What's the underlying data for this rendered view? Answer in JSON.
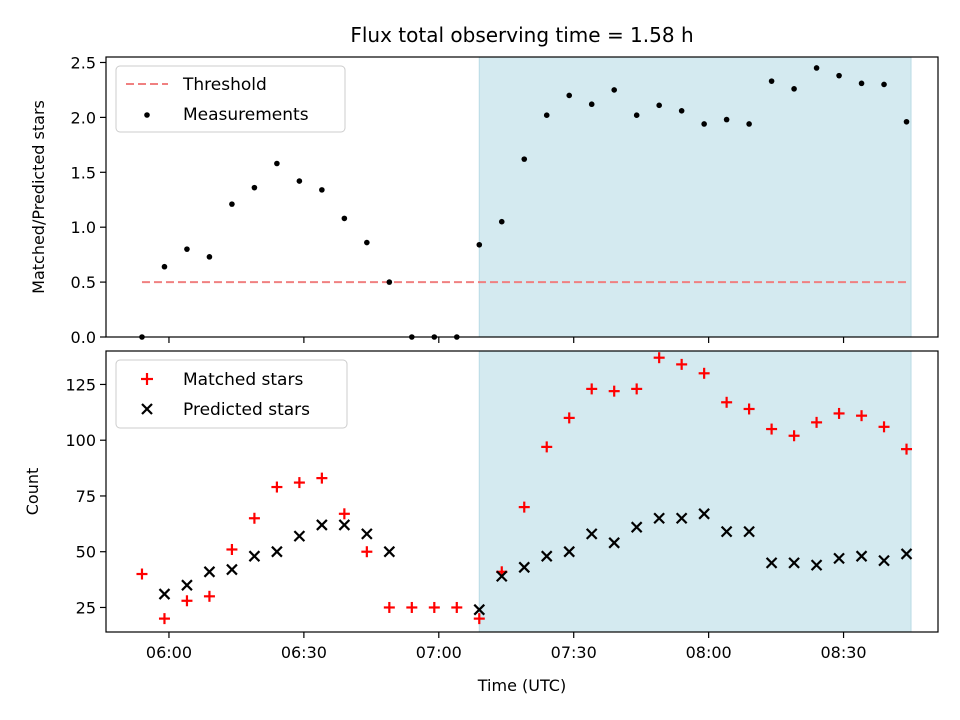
{
  "chart_data": {
    "title": "Flux total observing time = 1.58 h",
    "x_label": "Time (UTC)",
    "x_ticks": [
      "06:00",
      "06:30",
      "07:00",
      "07:30",
      "08:00",
      "08:30"
    ],
    "x_range": [
      "05:46",
      "08:51"
    ],
    "highlight_span": {
      "start": "07:09",
      "end": "08:45",
      "color": "#d4eaf0"
    },
    "times": [
      "05:54",
      "05:59",
      "06:04",
      "06:09",
      "06:14",
      "06:19",
      "06:24",
      "06:29",
      "06:34",
      "06:39",
      "06:44",
      "06:49",
      "06:54",
      "06:59",
      "07:04",
      "07:09",
      "07:14",
      "07:19",
      "07:24",
      "07:29",
      "07:34",
      "07:39",
      "07:44",
      "07:49",
      "07:54",
      "07:59",
      "08:04",
      "08:09",
      "08:14",
      "08:19",
      "08:24",
      "08:29",
      "08:34",
      "08:39",
      "08:44"
    ],
    "panels": [
      {
        "type": "scatter+line",
        "ylabel": "Matched/Predicted stars",
        "ylim": [
          0,
          2.55
        ],
        "y_ticks": [
          "0.0",
          "0.5",
          "1.0",
          "1.5",
          "2.0",
          "2.5"
        ],
        "legend_position": "upper-left",
        "threshold": {
          "name": "Threshold",
          "value": 0.5,
          "color": "#f08080",
          "style": "dashed"
        },
        "series": [
          {
            "name": "Measurements",
            "marker": "dot",
            "color": "#000000",
            "values": [
              0.0,
              0.64,
              0.8,
              0.73,
              1.21,
              1.36,
              1.58,
              1.42,
              1.34,
              1.08,
              0.86,
              0.5,
              0.0,
              0.0,
              0.0,
              0.84,
              1.05,
              1.62,
              2.02,
              2.2,
              2.12,
              2.25,
              2.02,
              2.11,
              2.06,
              1.94,
              1.98,
              1.94,
              2.33,
              2.26,
              2.45,
              2.38,
              2.31,
              2.3,
              1.96
            ]
          }
        ]
      },
      {
        "type": "scatter",
        "ylabel": "Count",
        "ylim": [
          14,
          140
        ],
        "y_ticks": [
          "25",
          "50",
          "75",
          "100",
          "125"
        ],
        "legend_position": "upper-left",
        "series": [
          {
            "name": "Matched stars",
            "marker": "plus",
            "color": "#ff0000",
            "values": [
              40,
              20,
              28,
              30,
              51,
              65,
              79,
              81,
              83,
              67,
              50,
              25,
              25,
              25,
              25,
              20,
              41,
              70,
              97,
              110,
              123,
              122,
              123,
              137,
              134,
              130,
              117,
              114,
              105,
              102,
              108,
              112,
              111,
              106,
              96
            ]
          },
          {
            "name": "Predicted stars",
            "marker": "x",
            "color": "#000000",
            "values": [
              null,
              31,
              35,
              41,
              42,
              48,
              50,
              57,
              62,
              62,
              58,
              50,
              null,
              null,
              null,
              24,
              39,
              43,
              48,
              50,
              58,
              54,
              61,
              65,
              65,
              67,
              59,
              59,
              45,
              45,
              44,
              47,
              48,
              46,
              49
            ]
          }
        ]
      }
    ]
  }
}
